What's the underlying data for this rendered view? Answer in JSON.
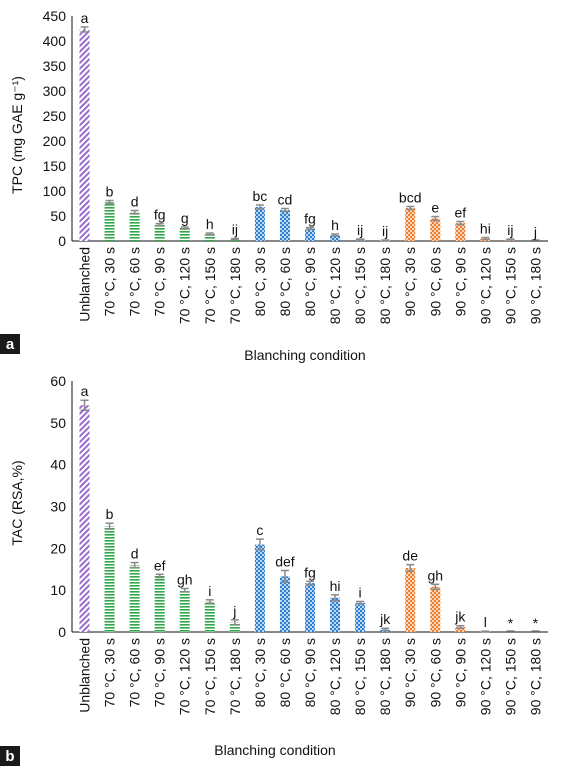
{
  "colors": {
    "unblanched": "#9b6ccf",
    "t70": "#2fa84a",
    "t80": "#2f7fd1",
    "t90": "#ee7d2f",
    "error": "#8a8a8a",
    "panel_tag_bg": "#1a1a1a"
  },
  "chart_data": [
    {
      "type": "bar",
      "panel_label": "a",
      "xlabel": "Blanching condition",
      "ylabel": "TPC (mg GAE g⁻¹)",
      "ylim": [
        0,
        450
      ],
      "yticks": [
        0,
        50,
        100,
        150,
        200,
        250,
        300,
        350,
        400,
        450
      ],
      "categories": [
        "Unblanched",
        "70 °C, 30 s",
        "70 °C, 60 s",
        "70 °C, 90 s",
        "70 °C, 120 s",
        "70 °C, 150 s",
        "70 °C, 180 s",
        "80 °C, 30 s",
        "80 °C, 60 s",
        "80 °C, 90 s",
        "80 °C, 120 s",
        "80 °C, 150 s",
        "80 °C, 180 s",
        "90 °C, 30 s",
        "90 °C, 60 s",
        "90 °C, 90 s",
        "90 °C, 120 s",
        "90 °C, 150 s",
        "90 °C, 180 s"
      ],
      "values": [
        423,
        78,
        58,
        33,
        26,
        14,
        4,
        68,
        62,
        25,
        12,
        3,
        1,
        66,
        45,
        36,
        5,
        3,
        0
      ],
      "errors": [
        5,
        3,
        3,
        2,
        2,
        2,
        1,
        4,
        3,
        2,
        2,
        1,
        1,
        3,
        4,
        3,
        2,
        1,
        0
      ],
      "letters": [
        "a",
        "b",
        "d",
        "fg",
        "g",
        "h",
        "ij",
        "bc",
        "cd",
        "fg",
        "h",
        "ij",
        "ij",
        "bcd",
        "e",
        "ef",
        "hi",
        "ij",
        "j"
      ],
      "grid": false,
      "legend": "none"
    },
    {
      "type": "bar",
      "panel_label": "b",
      "xlabel": "Blanching condition",
      "ylabel": "TAC (RSA,%)",
      "ylim": [
        0,
        60
      ],
      "yticks": [
        0,
        10,
        20,
        30,
        40,
        50,
        60
      ],
      "categories": [
        "Unblanched",
        "70 °C, 30 s",
        "70 °C, 60 s",
        "70 °C, 90 s",
        "70 °C, 120 s",
        "70 °C, 150 s",
        "70 °C, 180 s",
        "80 °C, 30 s",
        "80 °C, 60 s",
        "80 °C, 90 s",
        "80 °C, 120 s",
        "80 °C, 150 s",
        "80 °C, 180 s",
        "90 °C, 30 s",
        "90 °C, 60 s",
        "90 °C, 90 s",
        "90 °C, 120 s",
        "90 °C, 150 s",
        "90 °C, 180 s"
      ],
      "values": [
        54.2,
        25.3,
        16.0,
        13.4,
        10.0,
        7.3,
        2.3,
        20.9,
        13.3,
        11.7,
        8.2,
        7.0,
        0.6,
        15.3,
        10.8,
        1.2,
        0.1,
        0.0,
        0.0
      ],
      "errors": [
        1.2,
        0.7,
        0.6,
        0.4,
        0.4,
        0.4,
        0.6,
        1.3,
        1.4,
        0.4,
        0.7,
        0.3,
        0.3,
        0.8,
        0.6,
        0.3,
        0.1,
        0.0,
        0.0
      ],
      "letters": [
        "a",
        "b",
        "d",
        "ef",
        "gh",
        "i",
        "j",
        "c",
        "def",
        "fg",
        "hi",
        "i",
        "jk",
        "de",
        "gh",
        "jk",
        "l",
        "*",
        "*"
      ],
      "grid": false,
      "legend": "none"
    }
  ]
}
